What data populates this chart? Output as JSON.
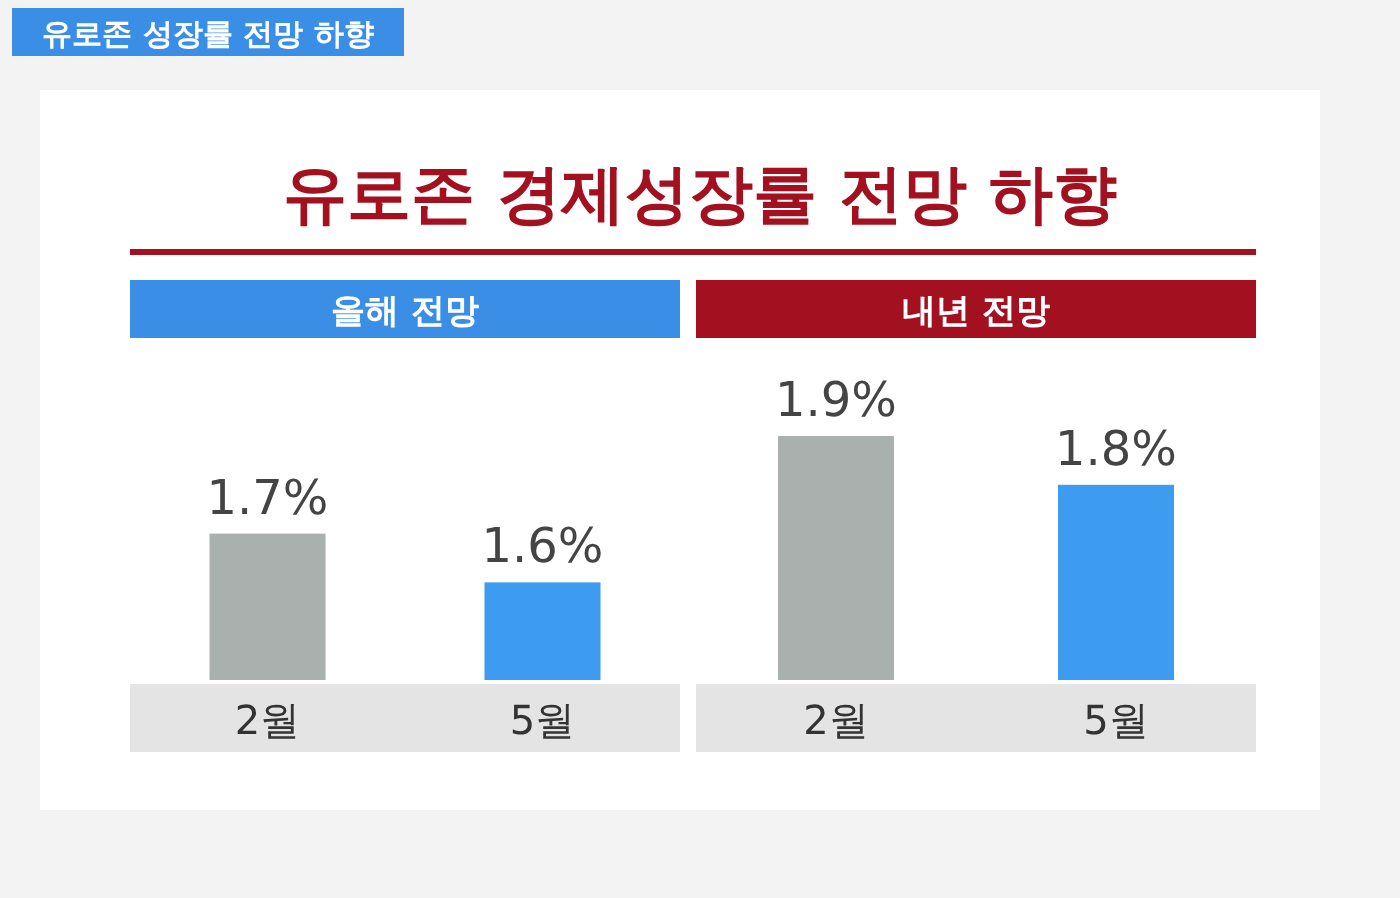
{
  "chart_data": [
    {
      "type": "bar",
      "title": "유로존 경제성장률 전망 하향",
      "subtitle": "올해 전망",
      "annotations": [
        "유로존 성장률 전망 하향"
      ],
      "categories": [
        "2월",
        "5월"
      ],
      "values": [
        1.7,
        1.6
      ],
      "colors": [
        "#a9b0ae",
        "#3d9cf0"
      ],
      "value_labels": [
        "1.7%",
        "1.6%"
      ],
      "ylim": [
        1.4,
        1.7
      ],
      "tick_labels": "x"
    },
    {
      "type": "bar",
      "subtitle": "내년 전망",
      "categories": [
        "2월",
        "5월"
      ],
      "values": [
        1.9,
        1.8
      ],
      "colors": [
        "#a9b0ae",
        "#3d9cf0"
      ],
      "value_labels": [
        "1.9%",
        "1.8%"
      ],
      "ylim": [
        1.4,
        1.9
      ],
      "tick_labels": "x"
    }
  ]
}
